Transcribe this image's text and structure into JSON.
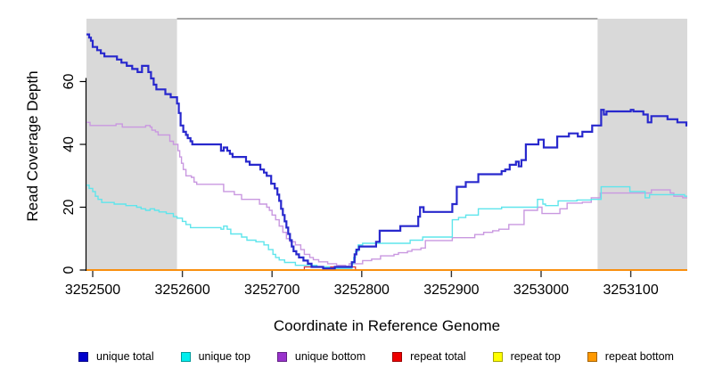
{
  "chart_data": {
    "type": "line",
    "title": "",
    "xlabel": "Coordinate in Reference Genome",
    "ylabel": "Read Coverage Depth",
    "x_ticks": [
      3252500,
      3252600,
      3252700,
      3252800,
      3252900,
      3253000,
      3253100
    ],
    "y_ticks": [
      0,
      20,
      40,
      60
    ],
    "xlim": [
      3252493,
      3253163
    ],
    "ylim": [
      0,
      80
    ],
    "grid": "off",
    "legend_position": "bottom",
    "shade_color": "#D9D9D9",
    "shaded_regions": [
      {
        "x0": 3252493,
        "x1": 3252594
      },
      {
        "x0": 3253063,
        "x1": 3253163
      }
    ],
    "series": [
      {
        "name": "repeat top",
        "color": "#FFFF33",
        "width": 1.2,
        "step": true,
        "points": [
          [
            3252493,
            0
          ]
        ]
      },
      {
        "name": "repeat total",
        "color": "#CC3344",
        "width": 1.2,
        "step": true,
        "points": [
          [
            3252493,
            0
          ],
          [
            3252736,
            1
          ],
          [
            3252793,
            0
          ]
        ]
      },
      {
        "name": "repeat bottom",
        "color": "#FF8C00",
        "width": 1.8,
        "step": true,
        "points": [
          [
            3252493,
            0
          ]
        ]
      },
      {
        "name": "unique bottom",
        "color": "#C998E0",
        "width": 1.4,
        "step": true,
        "points": [
          [
            3252493,
            47
          ],
          [
            3252497,
            46
          ],
          [
            3252526,
            46.5
          ],
          [
            3252533,
            45.5
          ],
          [
            3252559,
            46
          ],
          [
            3252564,
            45.5
          ],
          [
            3252566,
            44.5
          ],
          [
            3252570,
            44
          ],
          [
            3252573,
            43
          ],
          [
            3252586,
            41
          ],
          [
            3252590,
            40
          ],
          [
            3252595,
            38
          ],
          [
            3252597,
            36
          ],
          [
            3252599,
            34
          ],
          [
            3252601,
            32
          ],
          [
            3252604,
            30
          ],
          [
            3252610,
            29.5
          ],
          [
            3252613,
            28
          ],
          [
            3252616,
            27.3
          ],
          [
            3252646,
            25
          ],
          [
            3252658,
            24
          ],
          [
            3252666,
            22.5
          ],
          [
            3252686,
            21
          ],
          [
            3252694,
            20
          ],
          [
            3252697,
            19
          ],
          [
            3252700,
            17.5
          ],
          [
            3252704,
            16
          ],
          [
            3252708,
            14
          ],
          [
            3252712,
            12
          ],
          [
            3252716,
            10
          ],
          [
            3252720,
            9
          ],
          [
            3252726,
            8
          ],
          [
            3252732,
            6.5
          ],
          [
            3252736,
            5
          ],
          [
            3252742,
            4
          ],
          [
            3252746,
            3.3
          ],
          [
            3252752,
            2.6
          ],
          [
            3252762,
            2
          ],
          [
            3252772,
            1.5
          ],
          [
            3252782,
            1.2
          ],
          [
            3252786,
            2
          ],
          [
            3252801,
            3
          ],
          [
            3252811,
            3.5
          ],
          [
            3252821,
            4.5
          ],
          [
            3252836,
            5
          ],
          [
            3252841,
            5.5
          ],
          [
            3252851,
            6
          ],
          [
            3252856,
            6.5
          ],
          [
            3252866,
            7
          ],
          [
            3252871,
            9.4
          ],
          [
            3252901,
            10.3
          ],
          [
            3252926,
            11.3
          ],
          [
            3252936,
            12
          ],
          [
            3252946,
            12.5
          ],
          [
            3252953,
            13
          ],
          [
            3252964,
            14.5
          ],
          [
            3252981,
            19
          ],
          [
            3252996,
            20
          ],
          [
            3253001,
            18
          ],
          [
            3253021,
            19.5
          ],
          [
            3253029,
            21.3
          ],
          [
            3253046,
            21.6
          ],
          [
            3253056,
            23
          ],
          [
            3253066,
            24.5
          ],
          [
            3253123,
            25.5
          ],
          [
            3253144,
            24.5
          ],
          [
            3253148,
            23.5
          ],
          [
            3253158,
            23
          ]
        ]
      },
      {
        "name": "unique top",
        "color": "#5FE5EC",
        "width": 1.4,
        "step": true,
        "points": [
          [
            3252493,
            27
          ],
          [
            3252496,
            26
          ],
          [
            3252500,
            25
          ],
          [
            3252503,
            23.5
          ],
          [
            3252506,
            22.5
          ],
          [
            3252510,
            21.5
          ],
          [
            3252524,
            21
          ],
          [
            3252537,
            20.5
          ],
          [
            3252549,
            20
          ],
          [
            3252554,
            19.5
          ],
          [
            3252559,
            19
          ],
          [
            3252564,
            19.5
          ],
          [
            3252569,
            19
          ],
          [
            3252574,
            18.5
          ],
          [
            3252582,
            18
          ],
          [
            3252590,
            17
          ],
          [
            3252594,
            16.5
          ],
          [
            3252600,
            15.5
          ],
          [
            3252604,
            14.5
          ],
          [
            3252609,
            13.5
          ],
          [
            3252643,
            13
          ],
          [
            3252646,
            14
          ],
          [
            3252650,
            13
          ],
          [
            3252654,
            11.5
          ],
          [
            3252666,
            10.5
          ],
          [
            3252672,
            9.5
          ],
          [
            3252682,
            9
          ],
          [
            3252691,
            8
          ],
          [
            3252696,
            6.5
          ],
          [
            3252701,
            5
          ],
          [
            3252704,
            4
          ],
          [
            3252708,
            3.2
          ],
          [
            3252714,
            2.4
          ],
          [
            3252726,
            1.5
          ],
          [
            3252750,
            1
          ],
          [
            3252764,
            0.5
          ],
          [
            3252789,
            2
          ],
          [
            3252791,
            4
          ],
          [
            3252793,
            6
          ],
          [
            3252796,
            8
          ],
          [
            3252801,
            8.5
          ],
          [
            3252854,
            9.5
          ],
          [
            3252868,
            10.5
          ],
          [
            3252901,
            16
          ],
          [
            3252908,
            16.7
          ],
          [
            3252916,
            17.5
          ],
          [
            3252930,
            19.5
          ],
          [
            3252956,
            20
          ],
          [
            3252996,
            22.5
          ],
          [
            3253002,
            21
          ],
          [
            3253005,
            20.5
          ],
          [
            3253019,
            22
          ],
          [
            3253040,
            22.3
          ],
          [
            3253056,
            22.5
          ],
          [
            3253067,
            26.5
          ],
          [
            3253099,
            25
          ],
          [
            3253116,
            23
          ],
          [
            3253121,
            24
          ],
          [
            3253160,
            23.5
          ]
        ]
      },
      {
        "name": "unique total",
        "color": "#2828CD",
        "width": 2.2,
        "step": true,
        "points": [
          [
            3252493,
            75
          ],
          [
            3252496,
            74
          ],
          [
            3252498,
            73
          ],
          [
            3252500,
            71
          ],
          [
            3252505,
            70
          ],
          [
            3252509,
            69
          ],
          [
            3252513,
            68
          ],
          [
            3252527,
            67
          ],
          [
            3252532,
            66
          ],
          [
            3252538,
            65
          ],
          [
            3252544,
            64
          ],
          [
            3252550,
            63
          ],
          [
            3252555,
            65
          ],
          [
            3252562,
            63
          ],
          [
            3252565,
            61
          ],
          [
            3252568,
            59
          ],
          [
            3252571,
            57.5
          ],
          [
            3252581,
            56
          ],
          [
            3252587,
            55
          ],
          [
            3252594,
            53
          ],
          [
            3252596,
            50
          ],
          [
            3252598,
            46
          ],
          [
            3252601,
            44
          ],
          [
            3252604,
            43
          ],
          [
            3252606,
            42
          ],
          [
            3252609,
            41
          ],
          [
            3252611,
            40
          ],
          [
            3252643,
            38
          ],
          [
            3252646,
            39
          ],
          [
            3252650,
            38
          ],
          [
            3252653,
            37
          ],
          [
            3252656,
            36
          ],
          [
            3252671,
            34.5
          ],
          [
            3252675,
            33.5
          ],
          [
            3252687,
            32
          ],
          [
            3252691,
            31
          ],
          [
            3252694,
            30
          ],
          [
            3252699,
            27.5
          ],
          [
            3252703,
            26
          ],
          [
            3252706,
            24
          ],
          [
            3252708,
            22
          ],
          [
            3252710,
            19.5
          ],
          [
            3252712,
            17.5
          ],
          [
            3252714,
            15.5
          ],
          [
            3252716,
            13.5
          ],
          [
            3252718,
            11.5
          ],
          [
            3252720,
            9.5
          ],
          [
            3252722,
            7.5
          ],
          [
            3252724,
            6
          ],
          [
            3252727,
            5
          ],
          [
            3252730,
            4
          ],
          [
            3252735,
            3
          ],
          [
            3252740,
            2
          ],
          [
            3252744,
            1
          ],
          [
            3252757,
            0.5
          ],
          [
            3252770,
            1
          ],
          [
            3252789,
            2.5
          ],
          [
            3252792,
            5
          ],
          [
            3252794,
            6.5
          ],
          [
            3252797,
            7.5
          ],
          [
            3252816,
            9
          ],
          [
            3252820,
            12.5
          ],
          [
            3252843,
            14
          ],
          [
            3252863,
            17
          ],
          [
            3252865,
            20
          ],
          [
            3252869,
            18.5
          ],
          [
            3252901,
            21
          ],
          [
            3252906,
            26.5
          ],
          [
            3252916,
            28
          ],
          [
            3252930,
            30.5
          ],
          [
            3252956,
            31.5
          ],
          [
            3252960,
            32
          ],
          [
            3252965,
            33.5
          ],
          [
            3252972,
            34.5
          ],
          [
            3252975,
            33
          ],
          [
            3252978,
            35
          ],
          [
            3252983,
            40
          ],
          [
            3252997,
            41.5
          ],
          [
            3253003,
            39
          ],
          [
            3253018,
            42.5
          ],
          [
            3253031,
            43.5
          ],
          [
            3253041,
            42.5
          ],
          [
            3253046,
            44
          ],
          [
            3253057,
            46
          ],
          [
            3253067,
            51
          ],
          [
            3253070,
            49.5
          ],
          [
            3253073,
            50.5
          ],
          [
            3253100,
            51
          ],
          [
            3253103,
            50.5
          ],
          [
            3253114,
            49.5
          ],
          [
            3253119,
            47
          ],
          [
            3253123,
            49
          ],
          [
            3253141,
            48
          ],
          [
            3253152,
            47
          ],
          [
            3253162,
            46
          ]
        ]
      }
    ],
    "legend": [
      {
        "label": "unique total",
        "color": "#0000CC"
      },
      {
        "label": "unique top",
        "color": "#00EEEE"
      },
      {
        "label": "unique bottom",
        "color": "#9933CC"
      },
      {
        "label": "repeat total",
        "color": "#EE0000"
      },
      {
        "label": "repeat top",
        "color": "#FFFF00"
      },
      {
        "label": "repeat bottom",
        "color": "#FF9900"
      }
    ]
  }
}
